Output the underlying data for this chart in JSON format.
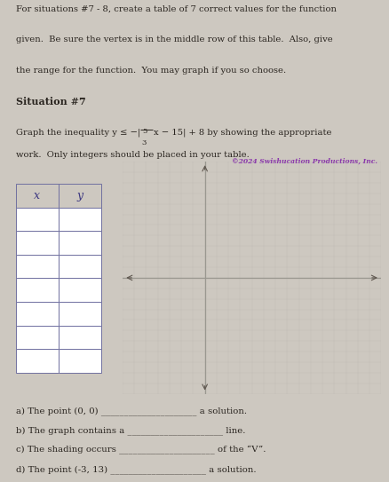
{
  "title_text_lines": [
    "For situations #7 - 8, create a table of 7 correct values for the function",
    "given.  Be sure the vertex is in the middle row of this table.  Also, give",
    "the range for the function.  You may graph if you so choose."
  ],
  "situation_header": "Situation #7",
  "problem_line1": "Graph the inequality y ≤ −|⁵⁄₃x − 15| + 8 by showing the appropriate",
  "problem_line1_plain": "Graph the inequality y ≤ −|",
  "problem_fraction": "5/3",
  "problem_line1_end": "x − 15| + 8 by showing the appropriate",
  "problem_line2": "work.  Only integers should be placed in your table.",
  "copyright_text": "©2024 Swishucation Productions, Inc.",
  "table_headers": [
    "x",
    "y"
  ],
  "num_table_rows": 7,
  "questions": [
    "a) The point (0, 0) _____________________ a solution.",
    "b) The graph contains a _____________________ line.",
    "c) The shading occurs _____________________ of the “V”.",
    "d) The point (-3, 13) _____________________ a solution."
  ],
  "bg_color": "#cdc8c0",
  "grid_bg_color": "#d8d4ce",
  "text_color": "#2a2520",
  "table_header_color": "#3a3580",
  "table_border_color": "#7070a0",
  "copyright_color": "#8833aa",
  "grid_minor_color": "#bcb8b4",
  "grid_major_color": "#9a9890",
  "axis_color": "#908880",
  "axis_arrow_color": "#605850"
}
